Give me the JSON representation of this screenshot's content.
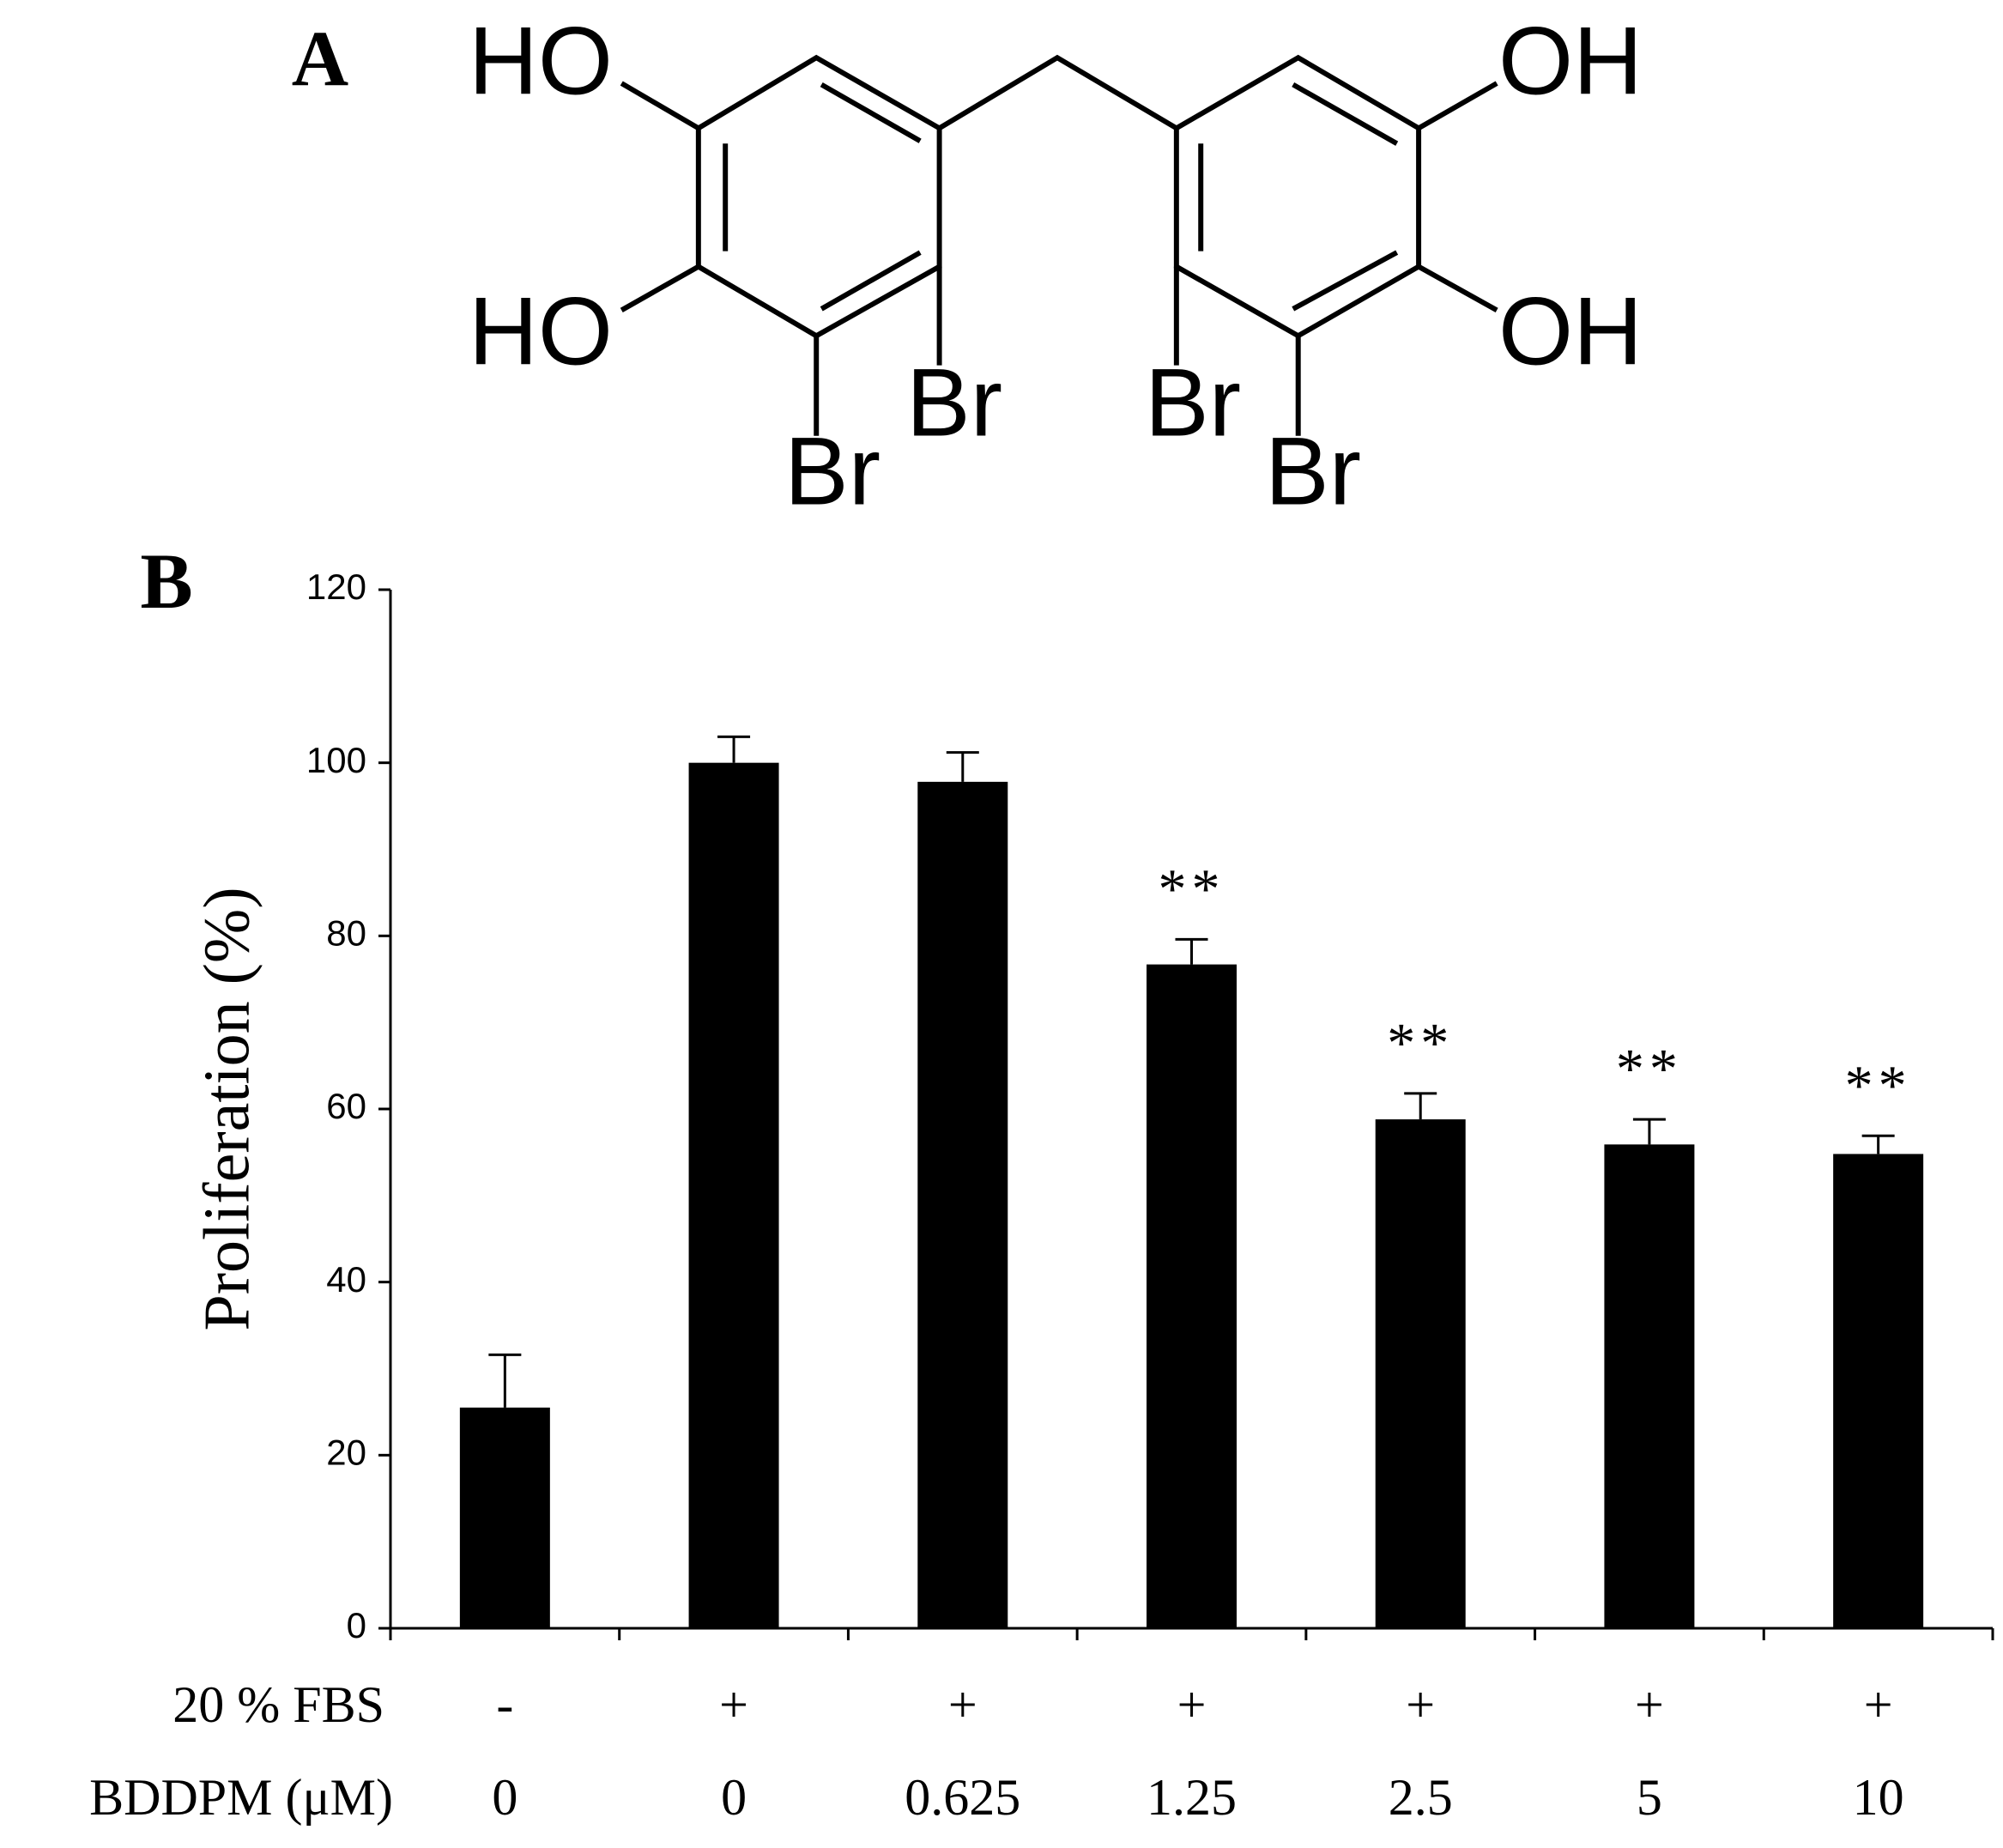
{
  "structure": {
    "panel": "A",
    "labels": [
      "HO",
      "HO",
      "Br",
      "Br",
      "Br",
      "Br",
      "OH",
      "OH"
    ]
  },
  "chart_data": {
    "type": "bar",
    "panel": "B",
    "ylabel": "Proliferation (%)",
    "row_labels": [
      "20 % FBS",
      "BDDPM (μM)"
    ],
    "fbs": [
      "-",
      "+",
      "+",
      "+",
      "+",
      "+",
      "+"
    ],
    "categories": [
      "0",
      "0",
      "0.625",
      "1.25",
      "2.5",
      "5",
      "10"
    ],
    "values": [
      25.5,
      100,
      97.8,
      76.7,
      58.8,
      55.9,
      54.8
    ],
    "errors": [
      6.1,
      3,
      3.4,
      2.9,
      3,
      2.9,
      2.1
    ],
    "annotations": [
      null,
      null,
      null,
      "**",
      "**",
      "**",
      "**"
    ],
    "color": "#000000",
    "ylim": [
      0,
      120
    ],
    "yticks": [
      0,
      20,
      40,
      60,
      80,
      100,
      120
    ]
  }
}
